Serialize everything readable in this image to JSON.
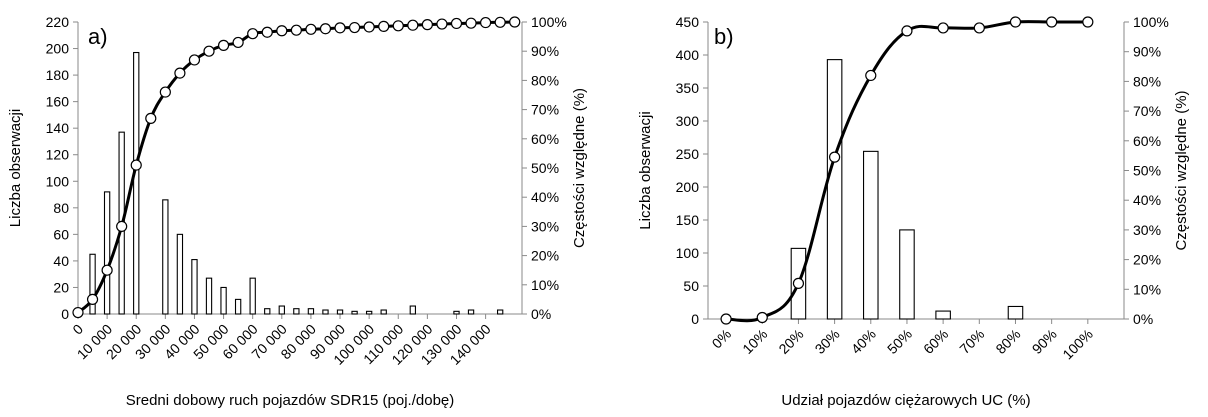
{
  "chart_data": [
    {
      "type": "bar",
      "panel_label": "a)",
      "xlabel": "Sredni dobowy ruch pojazdów SDR15 (poj./dobę)",
      "ylabel": "Liczba obserwacji",
      "y2label": "Częstości względne (%)",
      "x_tick_labels": [
        "0",
        "10 000",
        "20 000",
        "30 000",
        "40 000",
        "50 000",
        "60 000",
        "70 000",
        "80 000",
        "90 000",
        "100 000",
        "110 000",
        "120 000",
        "130 000",
        "140 000"
      ],
      "x_tick_values": [
        0,
        10000,
        20000,
        30000,
        40000,
        50000,
        60000,
        70000,
        80000,
        90000,
        100000,
        110000,
        120000,
        130000,
        140000
      ],
      "xlim": [
        0,
        152500
      ],
      "y_ticks": [
        0,
        20,
        40,
        60,
        80,
        100,
        120,
        140,
        160,
        180,
        200,
        220
      ],
      "ylim": [
        0,
        220
      ],
      "y2_ticks": [
        "0%",
        "10%",
        "20%",
        "30%",
        "40%",
        "50%",
        "60%",
        "70%",
        "80%",
        "90%",
        "100%"
      ],
      "y2lim": [
        0,
        100
      ],
      "bar_width": 1800,
      "bars": {
        "x": [
          0,
          5000,
          10000,
          15000,
          20000,
          25000,
          30000,
          35000,
          40000,
          45000,
          50000,
          55000,
          60000,
          65000,
          70000,
          75000,
          80000,
          85000,
          90000,
          95000,
          100000,
          105000,
          110000,
          115000,
          120000,
          125000,
          130000,
          135000,
          140000,
          145000
        ],
        "values": [
          4,
          45,
          92,
          137,
          197,
          0,
          86,
          60,
          41,
          27,
          20,
          11,
          27,
          4,
          6,
          4,
          4,
          3,
          3,
          2,
          2,
          3,
          0,
          6,
          0,
          0,
          2,
          3,
          0,
          3
        ]
      },
      "cumulative_line": {
        "x": [
          0,
          5000,
          10000,
          15000,
          20000,
          25000,
          30000,
          35000,
          40000,
          45000,
          50000,
          55000,
          60000,
          65000,
          70000,
          75000,
          80000,
          85000,
          90000,
          95000,
          100000,
          105000,
          110000,
          115000,
          120000,
          125000,
          130000,
          135000,
          140000,
          145000,
          150000
        ],
        "values": [
          0.5,
          5,
          15,
          30,
          51,
          67,
          76,
          82.5,
          87,
          90,
          92,
          93,
          96,
          96.5,
          97,
          97.2,
          97.5,
          97.7,
          98,
          98.1,
          98.3,
          98.5,
          98.7,
          98.9,
          99.1,
          99.3,
          99.5,
          99.6,
          99.8,
          99.9,
          100
        ]
      }
    },
    {
      "type": "bar",
      "panel_label": "b)",
      "xlabel": "Udział pojazdów ciężarowych UC (%)",
      "ylabel": "Liczba obserwacji",
      "y2label": "Częstości względne (%)",
      "x_tick_labels": [
        "0%",
        "10%",
        "20%",
        "30%",
        "40%",
        "50%",
        "60%",
        "70%",
        "80%",
        "90%",
        "100%"
      ],
      "x_tick_values": [
        0,
        10,
        20,
        30,
        40,
        50,
        60,
        70,
        80,
        90,
        100
      ],
      "xlim": [
        -5,
        110
      ],
      "y_ticks": [
        0,
        50,
        100,
        150,
        200,
        250,
        300,
        350,
        400,
        450
      ],
      "ylim": [
        0,
        450
      ],
      "y2_ticks": [
        "0%",
        "10%",
        "20%",
        "30%",
        "40%",
        "50%",
        "60%",
        "70%",
        "80%",
        "90%",
        "100%"
      ],
      "y2lim": [
        0,
        100
      ],
      "bar_width": 4,
      "bars": {
        "x": [
          0,
          10,
          20,
          30,
          40,
          50,
          60,
          70,
          80,
          90,
          100
        ],
        "values": [
          0,
          0,
          107,
          393,
          254,
          135,
          12,
          0,
          19,
          0,
          0
        ]
      },
      "cumulative_line": {
        "x": [
          0,
          10,
          20,
          30,
          40,
          50,
          60,
          70,
          80,
          90,
          100
        ],
        "values": [
          0,
          0.5,
          12,
          54.5,
          82,
          97,
          98,
          98,
          100,
          100,
          100
        ]
      }
    }
  ]
}
